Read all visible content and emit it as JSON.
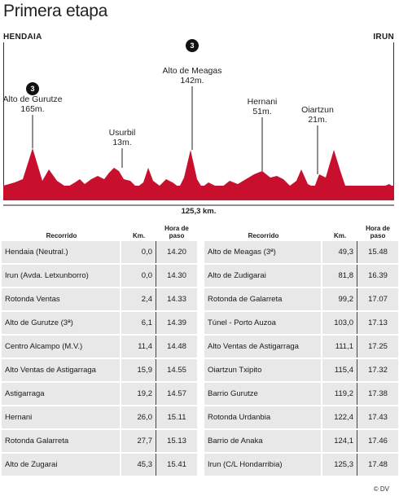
{
  "title": "Primera etapa",
  "start": "HENDAIA",
  "finish": "IRUN",
  "footer": "© DV",
  "chart_data": {
    "type": "area",
    "total_distance_label": "125,3 km.",
    "x_range_km": [
      0,
      125.3
    ],
    "color": "#c8102e",
    "peaks": [
      {
        "name": "Alto de Gurutze",
        "elevation_label": "165m.",
        "category": "3"
      },
      {
        "name": "Usurbil",
        "elevation_label": "13m.",
        "category": ""
      },
      {
        "name": "Alto de Meagas",
        "elevation_label": "142m.",
        "category": "3"
      },
      {
        "name": "Hernani",
        "elevation_label": "51m.",
        "category": ""
      },
      {
        "name": "Oiartzun",
        "elevation_label": "21m.",
        "category": ""
      }
    ]
  },
  "table": {
    "headers": {
      "route": "Recorrido",
      "km": "Km.",
      "hour": "Hora de paso"
    },
    "left": [
      {
        "place": "Hendaia (Neutral.)",
        "km": "0,0",
        "hour": "14.20"
      },
      {
        "place": "Irun (Avda. Letxunborro)",
        "km": "0,0",
        "hour": "14.30"
      },
      {
        "place": "Rotonda Ventas",
        "km": "2,4",
        "hour": "14.33"
      },
      {
        "place": "Alto de Gurutze (3ª)",
        "km": "6,1",
        "hour": "14.39"
      },
      {
        "place": "Centro Alcampo (M.V.)",
        "km": "11,4",
        "hour": "14.48"
      },
      {
        "place": "Alto Ventas de Astigarraga",
        "km": "15,9",
        "hour": "14.55"
      },
      {
        "place": "Astigarraga",
        "km": "19,2",
        "hour": "14.57"
      },
      {
        "place": "Hernani",
        "km": "26,0",
        "hour": "15.11"
      },
      {
        "place": "Rotonda Galarreta",
        "km": "27,7",
        "hour": "15.13"
      },
      {
        "place": "Alto de Zugarai",
        "km": "45,3",
        "hour": "15.41"
      }
    ],
    "right": [
      {
        "place": "Alto de Meagas (3ª)",
        "km": "49,3",
        "hour": "15.48"
      },
      {
        "place": "Alto de Zudigarai",
        "km": "81,8",
        "hour": "16.39"
      },
      {
        "place": "Rotonda de Galarreta",
        "km": "99,2",
        "hour": "17.07"
      },
      {
        "place": "Túnel - Porto Auzoa",
        "km": "103,0",
        "hour": "17.13"
      },
      {
        "place": "Alto Ventas de Astigarraga",
        "km": "111,1",
        "hour": "17.25"
      },
      {
        "place": "Oiartzun Txipito",
        "km": "115,4",
        "hour": "17.32"
      },
      {
        "place": "Barrio Gurutze",
        "km": "119,2",
        "hour": "17.38"
      },
      {
        "place": "Rotonda Urdanbia",
        "km": "122,4",
        "hour": "17.43"
      },
      {
        "place": "Barrio de Anaka",
        "km": "124,1",
        "hour": "17.46"
      },
      {
        "place": "Irun (C/L Hondarribia)",
        "km": "125,3",
        "hour": "17.48"
      }
    ]
  }
}
